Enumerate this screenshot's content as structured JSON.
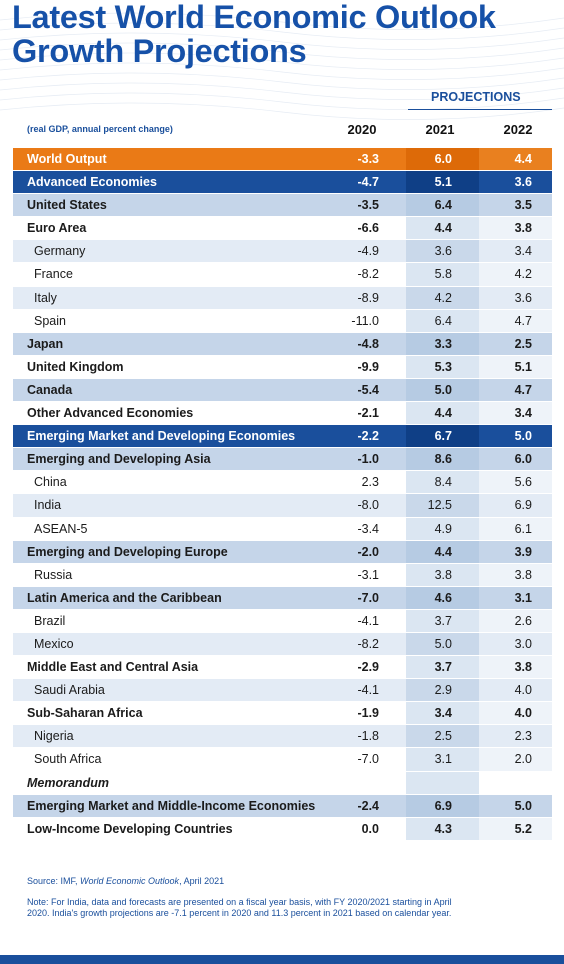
{
  "title_line1": "Latest World Economic Outlook",
  "title_line2": "Growth Projections",
  "projections_label": "PROJECTIONS",
  "subheader": "(real GDP, annual percent change)",
  "years": [
    "2020",
    "2021",
    "2022"
  ],
  "colors": {
    "title_blue": "#1651a8",
    "orange": "#ea7a16",
    "navy": "#1a4f9c",
    "row_blue": "#c5d5e9",
    "row_light": "#e3ebf5"
  },
  "rows": [
    {
      "name": "World Output",
      "v2020": "-3.3",
      "v2021": "6.0",
      "v2022": "4.4",
      "style": "orange"
    },
    {
      "name": "Advanced Economies",
      "v2020": "-4.7",
      "v2021": "5.1",
      "v2022": "3.6",
      "style": "navy"
    },
    {
      "name": "United States",
      "v2020": "-3.5",
      "v2021": "6.4",
      "v2022": "3.5",
      "style": "shade bold"
    },
    {
      "name": "Euro Area",
      "v2020": "-6.6",
      "v2021": "4.4",
      "v2022": "3.8",
      "style": "white bold"
    },
    {
      "name": "Germany",
      "v2020": "-4.9",
      "v2021": "3.6",
      "v2022": "3.4",
      "style": "light indent"
    },
    {
      "name": "France",
      "v2020": "-8.2",
      "v2021": "5.8",
      "v2022": "4.2",
      "style": "white indent"
    },
    {
      "name": "Italy",
      "v2020": "-8.9",
      "v2021": "4.2",
      "v2022": "3.6",
      "style": "light indent"
    },
    {
      "name": "Spain",
      "v2020": "-11.0",
      "v2021": "6.4",
      "v2022": "4.7",
      "style": "white indent"
    },
    {
      "name": "Japan",
      "v2020": "-4.8",
      "v2021": "3.3",
      "v2022": "2.5",
      "style": "shade bold"
    },
    {
      "name": "United Kingdom",
      "v2020": "-9.9",
      "v2021": "5.3",
      "v2022": "5.1",
      "style": "white bold"
    },
    {
      "name": "Canada",
      "v2020": "-5.4",
      "v2021": "5.0",
      "v2022": "4.7",
      "style": "shade bold"
    },
    {
      "name": "Other Advanced Economies",
      "v2020": "-2.1",
      "v2021": "4.4",
      "v2022": "3.4",
      "style": "white bold"
    },
    {
      "name": "Emerging Market and Developing Economies",
      "v2020": "-2.2",
      "v2021": "6.7",
      "v2022": "5.0",
      "style": "navy"
    },
    {
      "name": "Emerging and Developing Asia",
      "v2020": "-1.0",
      "v2021": "8.6",
      "v2022": "6.0",
      "style": "shade bold"
    },
    {
      "name": "China",
      "v2020": "2.3",
      "v2021": "8.4",
      "v2022": "5.6",
      "style": "white indent"
    },
    {
      "name": "India",
      "v2020": "-8.0",
      "v2021": "12.5",
      "v2022": "6.9",
      "style": "light indent"
    },
    {
      "name": "ASEAN-5",
      "v2020": "-3.4",
      "v2021": "4.9",
      "v2022": "6.1",
      "style": "white indent"
    },
    {
      "name": "Emerging and Developing Europe",
      "v2020": "-2.0",
      "v2021": "4.4",
      "v2022": "3.9",
      "style": "shade bold"
    },
    {
      "name": "Russia",
      "v2020": "-3.1",
      "v2021": "3.8",
      "v2022": "3.8",
      "style": "white indent"
    },
    {
      "name": "Latin America and the Caribbean",
      "v2020": "-7.0",
      "v2021": "4.6",
      "v2022": "3.1",
      "style": "shade bold"
    },
    {
      "name": "Brazil",
      "v2020": "-4.1",
      "v2021": "3.7",
      "v2022": "2.6",
      "style": "white indent"
    },
    {
      "name": "Mexico",
      "v2020": "-8.2",
      "v2021": "5.0",
      "v2022": "3.0",
      "style": "light indent"
    },
    {
      "name": "Middle East and Central Asia",
      "v2020": "-2.9",
      "v2021": "3.7",
      "v2022": "3.8",
      "style": "white bold"
    },
    {
      "name": "Saudi Arabia",
      "v2020": "-4.1",
      "v2021": "2.9",
      "v2022": "4.0",
      "style": "light indent"
    },
    {
      "name": "Sub-Saharan Africa",
      "v2020": "-1.9",
      "v2021": "3.4",
      "v2022": "4.0",
      "style": "white bold"
    },
    {
      "name": "Nigeria",
      "v2020": "-1.8",
      "v2021": "2.5",
      "v2022": "2.3",
      "style": "light indent"
    },
    {
      "name": "South Africa",
      "v2020": "-7.0",
      "v2021": "3.1",
      "v2022": "2.0",
      "style": "white indent"
    },
    {
      "name": "Memorandum",
      "v2020": "",
      "v2021": "",
      "v2022": "",
      "style": "white memo"
    },
    {
      "name": "Emerging Market and Middle-Income Economies",
      "v2020": "-2.4",
      "v2021": "6.9",
      "v2022": "5.0",
      "style": "shade bold"
    },
    {
      "name": "Low-Income Developing Countries",
      "v2020": "0.0",
      "v2021": "4.3",
      "v2022": "5.2",
      "style": "white bold"
    }
  ],
  "source_prefix": "Source: IMF, ",
  "source_title": "World Economic Outlook",
  "source_suffix": ", April 2021",
  "note": "Note: For India, data and forecasts are presented on a fiscal year basis, with FY 2020/2021 starting in April 2020. India's growth projections are -7.1 percent in 2020 and 11.3 percent in 2021 based on calendar year."
}
